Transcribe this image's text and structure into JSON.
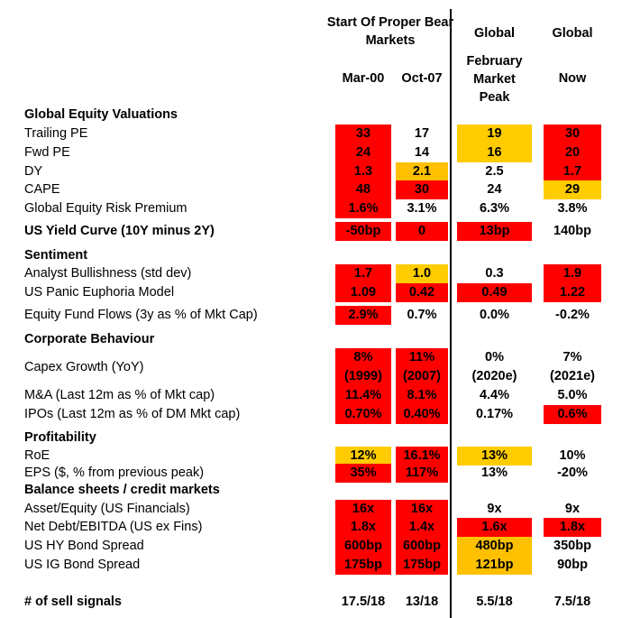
{
  "header": {
    "group_title": "Start Of Proper Bear Markets",
    "global_1": "Global",
    "global_2": "Global",
    "columns": [
      "Mar-00",
      "Oct-07",
      "February Market Peak",
      "Now"
    ]
  },
  "colors": {
    "r": "#FF0000",
    "y": "#FFCC00",
    "o": "#FFC000"
  },
  "rows": [
    {
      "label": "Global Equity Valuations",
      "heading": true
    },
    {
      "label": "Trailing PE",
      "values": [
        "33",
        "17",
        "19",
        "30"
      ],
      "fill": [
        "r",
        null,
        "y",
        "r"
      ]
    },
    {
      "label": "Fwd PE",
      "values": [
        "24",
        "14",
        "16",
        "20"
      ],
      "fill": [
        "r",
        null,
        "y",
        "r"
      ]
    },
    {
      "label": "DY",
      "values": [
        "1.3",
        "2.1",
        "2.5",
        "1.7"
      ],
      "fill": [
        "r",
        "o",
        null,
        "r"
      ]
    },
    {
      "label": "CAPE",
      "values": [
        "48",
        "30",
        "24",
        "29"
      ],
      "fill": [
        "r",
        "r",
        null,
        "y"
      ]
    },
    {
      "label": "Global Equity Risk Premium",
      "values": [
        "1.6%",
        "3.1%",
        "6.3%",
        "3.8%"
      ],
      "fill": [
        "r",
        null,
        null,
        null
      ]
    },
    {
      "label": "US Yield Curve (10Y minus 2Y)",
      "bold": true,
      "values": [
        "-50bp",
        "0",
        "13bp",
        "140bp"
      ],
      "fill": [
        "r",
        "r",
        "r",
        null
      ]
    },
    {
      "label": "Sentiment",
      "heading": true
    },
    {
      "label": "Analyst Bullishness (std dev)",
      "values": [
        "1.7",
        "1.0",
        "0.3",
        "1.9"
      ],
      "fill": [
        "r",
        "y",
        null,
        "r"
      ]
    },
    {
      "label": "US Panic Euphoria Model",
      "values": [
        "1.09",
        "0.42",
        "0.49",
        "1.22"
      ],
      "fill": [
        "r",
        "r",
        "r",
        "r"
      ]
    },
    {
      "label": "Equity Fund Flows (3y as % of Mkt Cap)",
      "values": [
        "2.9%",
        "0.7%",
        "0.0%",
        "-0.2%"
      ],
      "fill": [
        "r",
        null,
        null,
        null
      ]
    },
    {
      "label": "Corporate Behaviour",
      "heading": true
    },
    {
      "label": "Capex Growth (YoY)",
      "values": [
        "8%",
        "11%",
        "0%",
        "7%"
      ],
      "sub": [
        "(1999)",
        "(2007)",
        "(2020e)",
        "(2021e)"
      ],
      "fill": [
        "r",
        "r",
        null,
        null
      ]
    },
    {
      "label": "M&A (Last 12m as % of Mkt cap)",
      "values": [
        "11.4%",
        "8.1%",
        "4.4%",
        "5.0%"
      ],
      "fill": [
        "r",
        "r",
        null,
        null
      ]
    },
    {
      "label": "IPOs (Last 12m as % of DM Mkt cap)",
      "values": [
        "0.70%",
        "0.40%",
        "0.17%",
        "0.6%"
      ],
      "fill": [
        "r",
        "r",
        null,
        "r"
      ]
    },
    {
      "label": "Profitability",
      "heading": true
    },
    {
      "label": "RoE",
      "values": [
        "12%",
        "16.1%",
        "13%",
        "10%"
      ],
      "fill": [
        "y",
        "r",
        "y",
        null
      ]
    },
    {
      "label": "EPS  ($, % from previous peak)",
      "values": [
        "35%",
        "117%",
        "13%",
        "-20%"
      ],
      "fill": [
        "r",
        "r",
        null,
        null
      ]
    },
    {
      "label": "Balance sheets / credit markets",
      "heading": true
    },
    {
      "label": "Asset/Equity (US Financials)",
      "values": [
        "16x",
        "16x",
        "9x",
        "9x"
      ],
      "fill": [
        "r",
        "r",
        null,
        null
      ]
    },
    {
      "label": "Net Debt/EBITDA (US ex Fins)",
      "values": [
        "1.8x",
        "1.4x",
        "1.6x",
        "1.8x"
      ],
      "fill": [
        "r",
        "r",
        "r",
        "r"
      ]
    },
    {
      "label": "US HY Bond Spread",
      "values": [
        "600bp",
        "600bp",
        "480bp",
        "350bp"
      ],
      "fill": [
        "r",
        "r",
        "o",
        null
      ]
    },
    {
      "label": "US IG Bond Spread",
      "values": [
        "175bp",
        "175bp",
        "121bp",
        "90bp"
      ],
      "fill": [
        "r",
        "r",
        "o",
        null
      ]
    },
    {
      "label": "# of sell signals",
      "bold": true,
      "values": [
        "17.5/18",
        "13/18",
        "5.5/18",
        "7.5/18"
      ],
      "fill": [
        null,
        null,
        null,
        null
      ]
    }
  ]
}
